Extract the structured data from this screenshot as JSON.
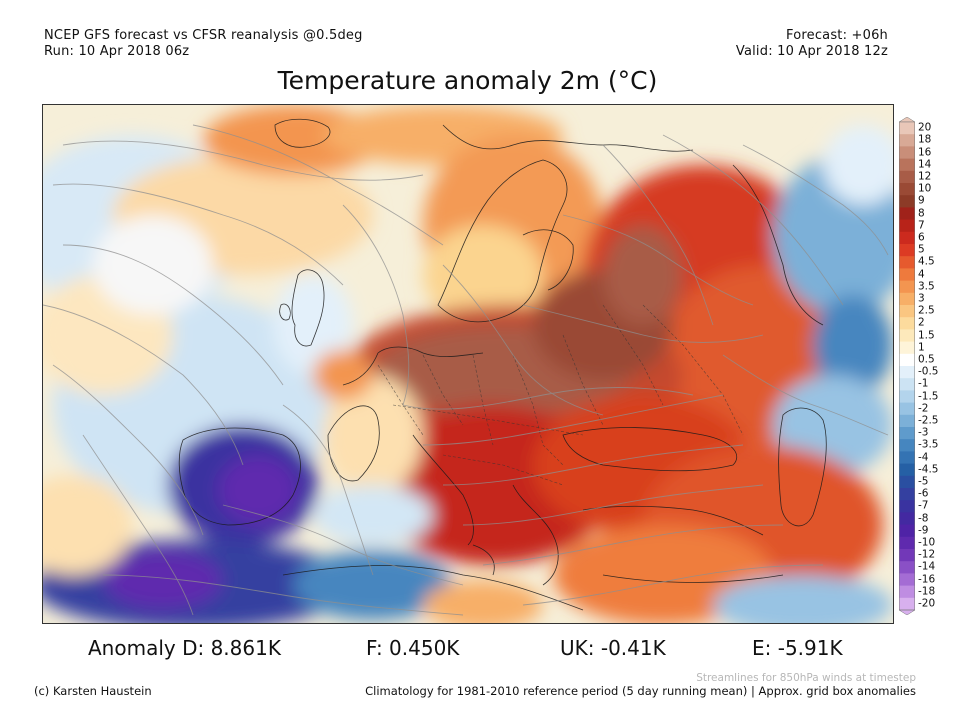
{
  "header": {
    "line1_left": "NCEP GFS forecast vs CFSR reanalysis @0.5deg",
    "line2_left": "Run: 10 Apr 2018 06z",
    "line1_right": "Forecast: +06h",
    "line2_right": "Valid: 10 Apr 2018 12z"
  },
  "title": "Temperature anomaly 2m (°C)",
  "colorbar": {
    "labels": [
      "20",
      "18",
      "16",
      "14",
      "12",
      "10",
      "9",
      "8",
      "7",
      "6",
      "5",
      "4.5",
      "4",
      "3.5",
      "3",
      "2.5",
      "2",
      "1.5",
      "1",
      "0.5",
      "-0.5",
      "-1",
      "-1.5",
      "-2",
      "-2.5",
      "-3",
      "-3.5",
      "-4",
      "-4.5",
      "-5",
      "-6",
      "-7",
      "-8",
      "-9",
      "-10",
      "-12",
      "-14",
      "-16",
      "-18",
      "-20"
    ],
    "colors": [
      "#e9c7b8",
      "#d8a996",
      "#c98e79",
      "#b9735c",
      "#a85c47",
      "#9a4a35",
      "#8c3b27",
      "#a0221a",
      "#b82319",
      "#cc2a1e",
      "#dc3b24",
      "#e65a2e",
      "#ee7a3d",
      "#f39550",
      "#f7af67",
      "#fac681",
      "#fcdb9d",
      "#fde9bb",
      "#fef4d9",
      "#ffffff",
      "#e3f0fa",
      "#cce3f3",
      "#b3d4ec",
      "#98c3e3",
      "#7cb0d8",
      "#5f9bcc",
      "#4686bf",
      "#3473b3",
      "#2560a5",
      "#2a4fa1",
      "#3440a0",
      "#3a33a0",
      "#4329a1",
      "#4f23a6",
      "#5f2aae",
      "#7238b8",
      "#8a50c6",
      "#a46cd4",
      "#bf8de2",
      "#d8b0ee"
    ]
  },
  "anomalies": {
    "d": "Anomaly D: 8.861K",
    "f": "F: 0.450K",
    "uk": "UK: -0.41K",
    "e": "E: -5.91K"
  },
  "footer": {
    "streamlines": "Streamlines for 850hPa winds at timestep",
    "credit": "(c) Karsten Haustein",
    "climatology": "Climatology for 1981-2010 reference period (5 day running mean) | Approx. grid box anomalies"
  }
}
